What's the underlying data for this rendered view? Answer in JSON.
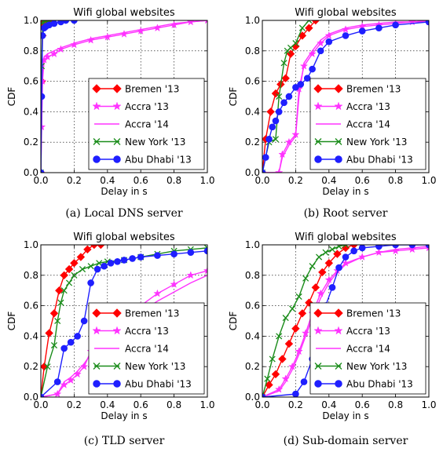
{
  "figure": {
    "subcaptions": [
      "(a) Local DNS server",
      "(b) Root server",
      "(c) TLD server",
      "(d) Sub-domain server"
    ]
  },
  "legend_colors": {
    "Bremen '13": "#ff0000",
    "Accra '13": "#ff33ff",
    "Accra '14": "#ff33ff",
    "New York '13": "#1a8c1a",
    "Abu Dhabi '13": "#1f1fff"
  },
  "chart_data": [
    {
      "type": "line",
      "title": "Wifi global websites",
      "xlabel": "Delay in s",
      "ylabel": "CDF",
      "xlim": [
        0.0,
        1.0
      ],
      "ylim": [
        0.0,
        1.0
      ],
      "xticks": [
        "0.0",
        "0.2",
        "0.4",
        "0.6",
        "0.8",
        "1.0"
      ],
      "yticks": [
        "0.0",
        "0.2",
        "0.4",
        "0.6",
        "0.8",
        "1.0"
      ],
      "grid": true,
      "legend": "lower-right",
      "series": [
        {
          "name": "Bremen '13",
          "marker": "diamond",
          "x": [
            0,
            0.005,
            0.01,
            0.015,
            0.02,
            0.03,
            0.04,
            0.06
          ],
          "y": [
            0,
            0.6,
            0.9,
            0.97,
            0.99,
            1.0,
            1.0,
            1.0
          ]
        },
        {
          "name": "Accra '13",
          "marker": "star",
          "x": [
            0,
            0.005,
            0.01,
            0.02,
            0.04,
            0.08,
            0.12,
            0.2,
            0.3,
            0.4,
            0.5,
            0.6,
            0.7,
            0.8,
            0.9,
            1.0
          ],
          "y": [
            0,
            0.3,
            0.6,
            0.74,
            0.76,
            0.78,
            0.81,
            0.84,
            0.87,
            0.89,
            0.91,
            0.93,
            0.95,
            0.97,
            0.99,
            1.0
          ]
        },
        {
          "name": "Accra '14",
          "marker": "none",
          "x": [
            0,
            0.005,
            0.01,
            0.02,
            0.04,
            0.08,
            0.12,
            0.2,
            0.3,
            0.4,
            0.5,
            0.6,
            0.7,
            0.8,
            0.9,
            1.0
          ],
          "y": [
            0,
            0.35,
            0.65,
            0.76,
            0.78,
            0.8,
            0.82,
            0.85,
            0.88,
            0.9,
            0.92,
            0.94,
            0.96,
            0.98,
            0.99,
            1.0
          ]
        },
        {
          "name": "New York '13",
          "marker": "x",
          "x": [
            0,
            0.005,
            0.01,
            0.015,
            0.02,
            0.03,
            0.05,
            0.08
          ],
          "y": [
            0,
            0.7,
            0.95,
            0.99,
            1.0,
            1.0,
            1.0,
            1.0
          ]
        },
        {
          "name": "Abu Dhabi '13",
          "marker": "circle",
          "x": [
            0,
            0.005,
            0.01,
            0.02,
            0.03,
            0.05,
            0.08,
            0.12,
            0.15,
            0.2
          ],
          "y": [
            0,
            0.5,
            0.9,
            0.95,
            0.96,
            0.97,
            0.98,
            0.99,
            1.0,
            1.0
          ]
        }
      ]
    },
    {
      "type": "line",
      "title": "Wifi global websites",
      "xlabel": "Delay in s",
      "ylabel": "CDF",
      "xlim": [
        0.0,
        1.0
      ],
      "ylim": [
        0.0,
        1.0
      ],
      "xticks": [
        "0.0",
        "0.2",
        "0.4",
        "0.6",
        "0.8",
        "1.0"
      ],
      "yticks": [
        "0.0",
        "0.2",
        "0.4",
        "0.6",
        "0.8",
        "1.0"
      ],
      "grid": true,
      "legend": "lower-right",
      "series": [
        {
          "name": "Bremen '13",
          "marker": "diamond",
          "x": [
            0,
            0.02,
            0.05,
            0.08,
            0.11,
            0.14,
            0.17,
            0.2,
            0.24,
            0.28,
            0.32
          ],
          "y": [
            0,
            0.22,
            0.4,
            0.52,
            0.58,
            0.62,
            0.78,
            0.83,
            0.9,
            0.95,
            1.0
          ]
        },
        {
          "name": "Accra '13",
          "marker": "star",
          "x": [
            0,
            0.1,
            0.12,
            0.16,
            0.2,
            0.22,
            0.25,
            0.3,
            0.35,
            0.4,
            0.5,
            0.6,
            0.7,
            0.8,
            0.9,
            1.0
          ],
          "y": [
            0,
            0.0,
            0.12,
            0.2,
            0.25,
            0.55,
            0.7,
            0.78,
            0.85,
            0.9,
            0.94,
            0.96,
            0.97,
            0.98,
            0.99,
            0.99
          ]
        },
        {
          "name": "Accra '14",
          "marker": "none",
          "x": [
            0,
            0.1,
            0.12,
            0.16,
            0.2,
            0.22,
            0.25,
            0.3,
            0.35,
            0.4,
            0.5,
            0.6,
            0.7,
            0.8,
            0.9,
            1.0
          ],
          "y": [
            0,
            0.0,
            0.1,
            0.18,
            0.24,
            0.5,
            0.72,
            0.8,
            0.87,
            0.91,
            0.95,
            0.97,
            0.98,
            0.99,
            0.99,
            1.0
          ]
        },
        {
          "name": "New York '13",
          "marker": "x",
          "x": [
            0,
            0.04,
            0.08,
            0.1,
            0.13,
            0.15,
            0.17,
            0.2,
            0.24,
            0.28
          ],
          "y": [
            0,
            0.2,
            0.22,
            0.5,
            0.72,
            0.8,
            0.82,
            0.85,
            0.95,
            1.0
          ]
        },
        {
          "name": "Abu Dhabi '13",
          "marker": "circle",
          "x": [
            0,
            0.02,
            0.04,
            0.06,
            0.08,
            0.1,
            0.13,
            0.16,
            0.2,
            0.23,
            0.27,
            0.3,
            0.35,
            0.4,
            0.5,
            0.6,
            0.7,
            0.8,
            1.0
          ],
          "y": [
            0,
            0.1,
            0.22,
            0.3,
            0.34,
            0.4,
            0.46,
            0.5,
            0.56,
            0.58,
            0.62,
            0.68,
            0.8,
            0.86,
            0.9,
            0.93,
            0.95,
            0.97,
            0.99
          ]
        }
      ]
    },
    {
      "type": "line",
      "title": "Wifi global websites",
      "xlabel": "Delay in s",
      "ylabel": "CDF",
      "xlim": [
        0.0,
        1.0
      ],
      "ylim": [
        0.0,
        1.0
      ],
      "xticks": [
        "0.0",
        "0.2",
        "0.4",
        "0.6",
        "0.8",
        "1.0"
      ],
      "yticks": [
        "0.0",
        "0.2",
        "0.4",
        "0.6",
        "0.8",
        "1.0"
      ],
      "grid": true,
      "legend": "lower-right",
      "series": [
        {
          "name": "Bremen '13",
          "marker": "diamond",
          "x": [
            0,
            0.02,
            0.05,
            0.08,
            0.11,
            0.14,
            0.17,
            0.2,
            0.24,
            0.28,
            0.32,
            0.36
          ],
          "y": [
            0,
            0.2,
            0.42,
            0.55,
            0.7,
            0.8,
            0.84,
            0.88,
            0.92,
            0.97,
            1.0,
            1.0
          ]
        },
        {
          "name": "Accra '13",
          "marker": "star",
          "x": [
            0,
            0.1,
            0.14,
            0.18,
            0.22,
            0.26,
            0.3,
            0.35,
            0.4,
            0.45,
            0.5,
            0.6,
            0.7,
            0.8,
            0.9,
            1.0
          ],
          "y": [
            0,
            0.02,
            0.08,
            0.11,
            0.15,
            0.2,
            0.3,
            0.38,
            0.43,
            0.47,
            0.52,
            0.6,
            0.68,
            0.74,
            0.8,
            0.83
          ]
        },
        {
          "name": "Accra '14",
          "marker": "none",
          "x": [
            0,
            0.1,
            0.14,
            0.18,
            0.22,
            0.26,
            0.3,
            0.35,
            0.4,
            0.45,
            0.5,
            0.6,
            0.7,
            0.8,
            0.9,
            1.0
          ],
          "y": [
            0,
            0.02,
            0.1,
            0.13,
            0.17,
            0.22,
            0.28,
            0.35,
            0.4,
            0.45,
            0.5,
            0.56,
            0.63,
            0.69,
            0.75,
            0.8
          ]
        },
        {
          "name": "New York '13",
          "marker": "x",
          "x": [
            0,
            0.04,
            0.08,
            0.1,
            0.12,
            0.14,
            0.17,
            0.2,
            0.25,
            0.3,
            0.35,
            0.4,
            0.5,
            0.6,
            0.7,
            0.8,
            0.9,
            1.0
          ],
          "y": [
            0,
            0.2,
            0.34,
            0.5,
            0.62,
            0.7,
            0.75,
            0.8,
            0.84,
            0.86,
            0.88,
            0.89,
            0.9,
            0.92,
            0.94,
            0.96,
            0.97,
            0.98
          ]
        },
        {
          "name": "Abu Dhabi '13",
          "marker": "circle",
          "x": [
            0,
            0.1,
            0.14,
            0.18,
            0.22,
            0.26,
            0.3,
            0.34,
            0.38,
            0.42,
            0.46,
            0.5,
            0.55,
            0.6,
            0.7,
            0.8,
            0.9,
            1.0
          ],
          "y": [
            0,
            0.1,
            0.32,
            0.36,
            0.4,
            0.5,
            0.75,
            0.84,
            0.86,
            0.88,
            0.89,
            0.9,
            0.91,
            0.92,
            0.93,
            0.94,
            0.95,
            0.96
          ]
        }
      ]
    },
    {
      "type": "line",
      "title": "Wifi global websites",
      "xlabel": "Delay in s",
      "ylabel": "CDF",
      "xlim": [
        0.0,
        1.0
      ],
      "ylim": [
        0.0,
        1.0
      ],
      "xticks": [
        "0.0",
        "0.2",
        "0.4",
        "0.6",
        "0.8",
        "1.0"
      ],
      "yticks": [
        "0.0",
        "0.2",
        "0.4",
        "0.6",
        "0.8",
        "1.0"
      ],
      "grid": true,
      "legend": "lower-right",
      "series": [
        {
          "name": "Bremen '13",
          "marker": "diamond",
          "x": [
            0,
            0.04,
            0.08,
            0.12,
            0.16,
            0.2,
            0.24,
            0.28,
            0.32,
            0.36,
            0.4,
            0.45,
            0.5,
            0.55
          ],
          "y": [
            0,
            0.08,
            0.15,
            0.25,
            0.35,
            0.45,
            0.55,
            0.62,
            0.72,
            0.82,
            0.88,
            0.94,
            0.98,
            1.0
          ]
        },
        {
          "name": "Accra '13",
          "marker": "star",
          "x": [
            0,
            0.1,
            0.14,
            0.18,
            0.22,
            0.26,
            0.3,
            0.35,
            0.4,
            0.45,
            0.5,
            0.6,
            0.7,
            0.8,
            0.9,
            1.0
          ],
          "y": [
            0,
            0.05,
            0.12,
            0.2,
            0.3,
            0.42,
            0.55,
            0.68,
            0.77,
            0.83,
            0.88,
            0.92,
            0.95,
            0.96,
            0.97,
            0.98
          ]
        },
        {
          "name": "Accra '14",
          "marker": "none",
          "x": [
            0,
            0.1,
            0.14,
            0.18,
            0.22,
            0.26,
            0.3,
            0.35,
            0.4,
            0.45,
            0.5,
            0.6,
            0.7,
            0.8,
            0.9,
            1.0
          ],
          "y": [
            0,
            0.04,
            0.1,
            0.18,
            0.28,
            0.4,
            0.52,
            0.65,
            0.75,
            0.82,
            0.87,
            0.92,
            0.95,
            0.97,
            0.98,
            0.99
          ]
        },
        {
          "name": "New York '13",
          "marker": "x",
          "x": [
            0,
            0.03,
            0.06,
            0.1,
            0.14,
            0.18,
            0.22,
            0.26,
            0.3,
            0.34,
            0.38,
            0.42,
            0.46,
            0.5
          ],
          "y": [
            0,
            0.12,
            0.25,
            0.4,
            0.52,
            0.58,
            0.66,
            0.78,
            0.86,
            0.92,
            0.95,
            0.97,
            0.99,
            1.0
          ]
        },
        {
          "name": "Abu Dhabi '13",
          "marker": "circle",
          "x": [
            0,
            0.2,
            0.25,
            0.3,
            0.35,
            0.38,
            0.42,
            0.46,
            0.5,
            0.55,
            0.6,
            0.7,
            0.8,
            0.9,
            1.0
          ],
          "y": [
            0,
            0.02,
            0.1,
            0.25,
            0.45,
            0.6,
            0.72,
            0.85,
            0.92,
            0.96,
            0.98,
            0.99,
            1.0,
            1.0,
            1.0
          ]
        }
      ]
    }
  ]
}
